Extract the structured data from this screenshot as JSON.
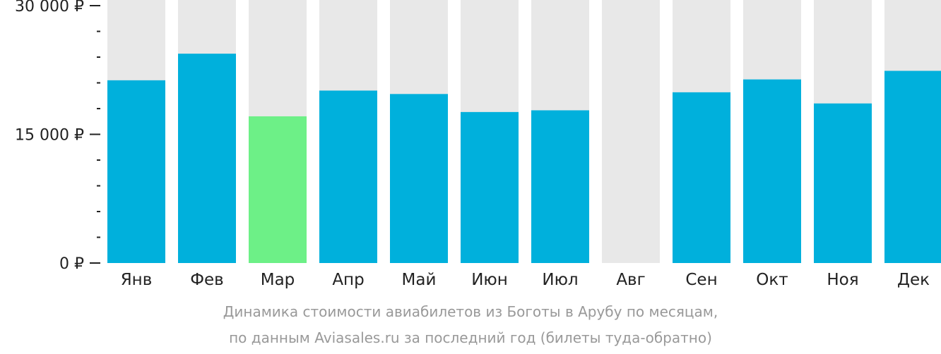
{
  "chart_data": {
    "type": "bar",
    "categories": [
      "Янв",
      "Фев",
      "Мар",
      "Апр",
      "Май",
      "Июн",
      "Июл",
      "Авг",
      "Сен",
      "Окт",
      "Ноя",
      "Дек"
    ],
    "values": [
      21300,
      24400,
      17100,
      20100,
      19700,
      17600,
      17800,
      null,
      19900,
      21400,
      18600,
      22400
    ],
    "ylim": [
      0,
      30000
    ],
    "yticks": [
      {
        "value": 0,
        "label": "0 ₽"
      },
      {
        "value": 15000,
        "label": "15 000 ₽"
      },
      {
        "value": 30000,
        "label": "30 000 ₽"
      }
    ],
    "minor_tick_step": 3000,
    "highlight_index": 2,
    "colors": {
      "bar": "#00b0dc",
      "highlight": "#6df087",
      "background_bar": "#e8e8e8",
      "axis": "#222222",
      "caption": "#999999"
    },
    "legend": "none",
    "grid": false
  },
  "caption": {
    "line1": "Динамика стоимости авиабилетов из Боготы в Арубу по месяцам,",
    "line2": "по данным Aviasales.ru за последний год (билеты туда-обратно)"
  }
}
